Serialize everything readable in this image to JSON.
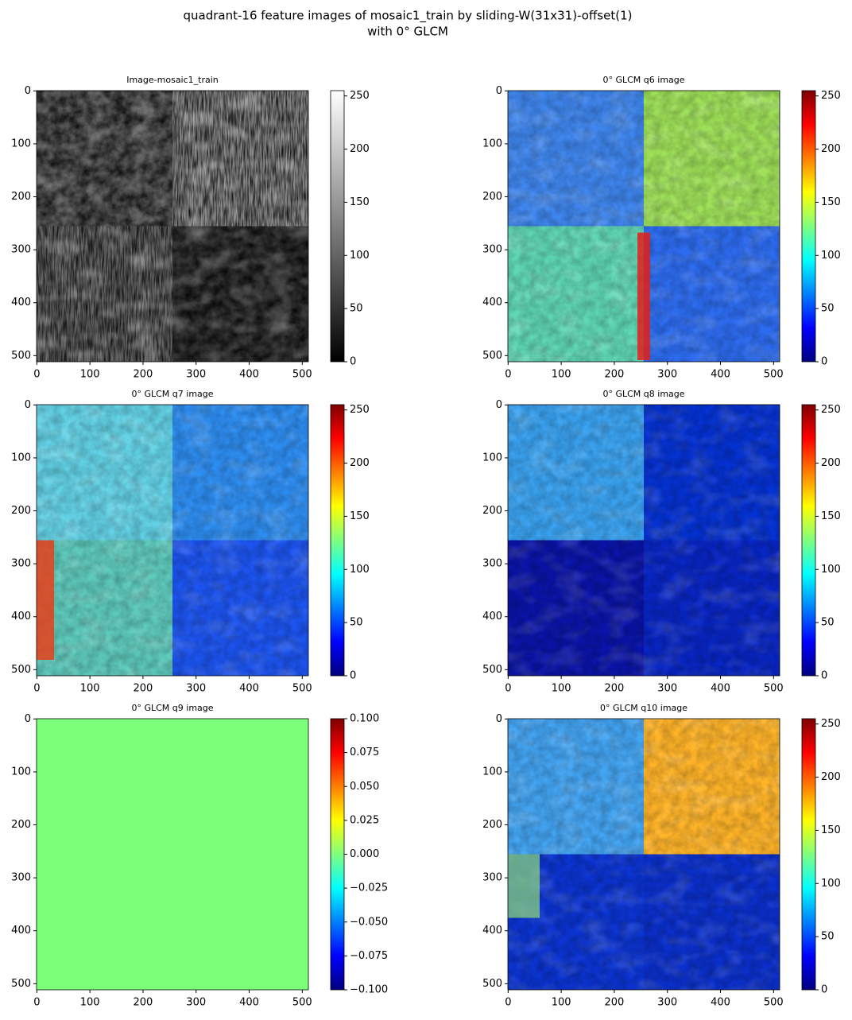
{
  "suptitle": [
    "quadrant-16 feature images of mosaic1_train by sliding-W(31x31)-offset(1)",
    "with 0° GLCM"
  ],
  "chart_data": [
    {
      "type": "image",
      "title": "Image-mosaic1_train",
      "cmap": "gray",
      "xlim": [
        -0.5,
        511.5
      ],
      "ylim": [
        511.5,
        -0.5
      ],
      "xticks": [
        0,
        100,
        200,
        300,
        400,
        500
      ],
      "yticks": [
        0,
        100,
        200,
        300,
        400,
        500
      ],
      "clim": [
        0,
        255
      ],
      "cticks": [
        0,
        50,
        100,
        150,
        200,
        250
      ]
    },
    {
      "type": "image",
      "title": "0° GLCM q6 image",
      "cmap": "jet",
      "xlim": [
        -0.5,
        511.5
      ],
      "ylim": [
        511.5,
        -0.5
      ],
      "xticks": [
        0,
        100,
        200,
        300,
        400,
        500
      ],
      "yticks": [
        0,
        100,
        200,
        300,
        400,
        500
      ],
      "clim": [
        0,
        255
      ],
      "cticks": [
        0,
        50,
        100,
        150,
        200,
        250
      ]
    },
    {
      "type": "image",
      "title": "0° GLCM q7 image",
      "cmap": "jet",
      "xlim": [
        -0.5,
        511.5
      ],
      "ylim": [
        511.5,
        -0.5
      ],
      "xticks": [
        0,
        100,
        200,
        300,
        400,
        500
      ],
      "yticks": [
        0,
        100,
        200,
        300,
        400,
        500
      ],
      "clim": [
        0,
        255
      ],
      "cticks": [
        0,
        50,
        100,
        150,
        200,
        250
      ]
    },
    {
      "type": "image",
      "title": "0° GLCM q8 image",
      "cmap": "jet",
      "xlim": [
        -0.5,
        511.5
      ],
      "ylim": [
        511.5,
        -0.5
      ],
      "xticks": [
        0,
        100,
        200,
        300,
        400,
        500
      ],
      "yticks": [
        0,
        100,
        200,
        300,
        400,
        500
      ],
      "clim": [
        0,
        255
      ],
      "cticks": [
        0,
        50,
        100,
        150,
        200,
        250
      ]
    },
    {
      "type": "image",
      "title": "0° GLCM q9 image",
      "cmap": "jet",
      "xlim": [
        -0.5,
        511.5
      ],
      "ylim": [
        511.5,
        -0.5
      ],
      "xticks": [
        0,
        100,
        200,
        300,
        400,
        500
      ],
      "yticks": [
        0,
        100,
        200,
        300,
        400,
        500
      ],
      "clim": [
        -0.1,
        0.1
      ],
      "cticks": [
        {
          "value": -0.1,
          "label": "−0.100"
        },
        {
          "value": -0.075,
          "label": "−0.075"
        },
        {
          "value": -0.05,
          "label": "−0.050"
        },
        {
          "value": -0.025,
          "label": "−0.025"
        },
        {
          "value": 0,
          "label": "0.000"
        },
        {
          "value": 0.025,
          "label": "0.025"
        },
        {
          "value": 0.05,
          "label": "0.050"
        },
        {
          "value": 0.075,
          "label": "0.075"
        },
        {
          "value": 0.1,
          "label": "0.100"
        }
      ]
    },
    {
      "type": "image",
      "title": "0° GLCM q10 image",
      "cmap": "jet",
      "xlim": [
        -0.5,
        511.5
      ],
      "ylim": [
        511.5,
        -0.5
      ],
      "xticks": [
        0,
        100,
        200,
        300,
        400,
        500
      ],
      "yticks": [
        0,
        100,
        200,
        300,
        400,
        500
      ],
      "clim": [
        0,
        255
      ],
      "cticks": [
        0,
        50,
        100,
        150,
        200,
        250
      ]
    }
  ]
}
